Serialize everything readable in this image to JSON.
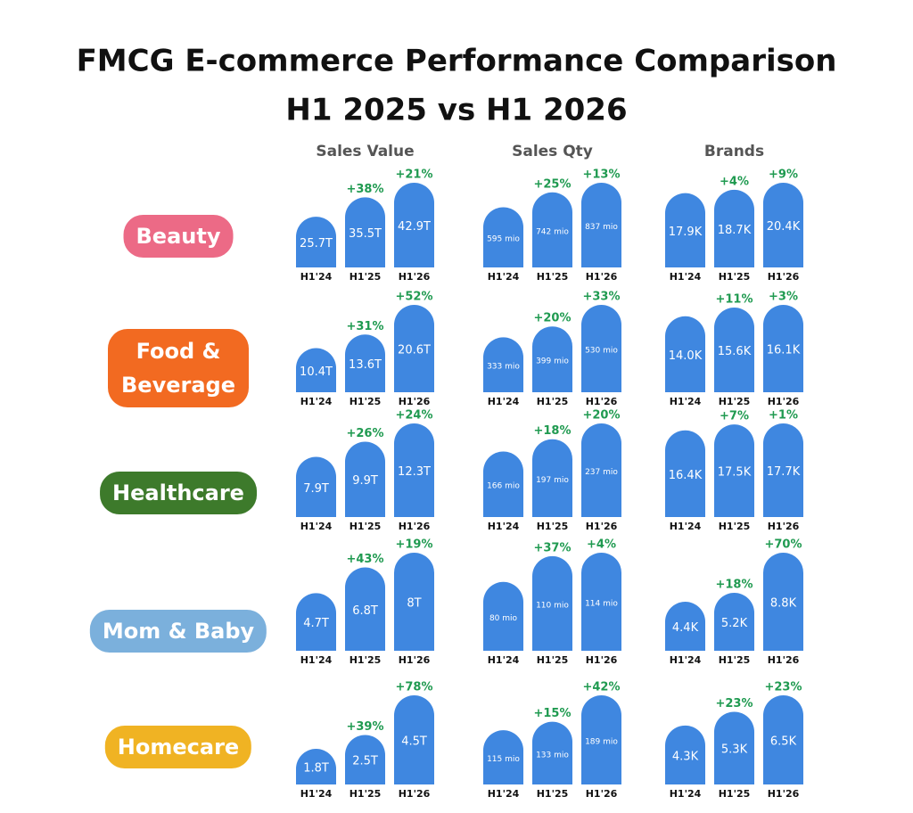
{
  "title": "FMCG E-commerce Performance Comparison",
  "subtitle": "H1 2025 vs H1 2026",
  "chart_data": {
    "type": "bar",
    "color": "#3f87e0",
    "growth_color": "#1f9a50",
    "metrics": [
      "Sales Value",
      "Sales Qty",
      "Brands"
    ],
    "periods": [
      "H1'24",
      "H1'25",
      "H1'26"
    ],
    "segments": [
      {
        "name": "Beauty",
        "color": "#ec6a86",
        "panels": [
          {
            "values": [
              25.7,
              35.5,
              42.9
            ],
            "value_labels": [
              "25.7T",
              "35.5T",
              "42.9T"
            ],
            "growth": [
              38,
              21
            ],
            "growth_labels": [
              "+38%",
              "+21%"
            ]
          },
          {
            "values": [
              595,
              742,
              837
            ],
            "value_labels": [
              "595 mio",
              "742 mio",
              "837 mio"
            ],
            "growth": [
              25,
              13
            ],
            "growth_labels": [
              "+25%",
              "+13%"
            ]
          },
          {
            "values": [
              17900,
              18700,
              20400
            ],
            "value_labels": [
              "17.9K",
              "18.7K",
              "20.4K"
            ],
            "growth": [
              4,
              9
            ],
            "growth_labels": [
              "+4%",
              "+9%"
            ]
          }
        ]
      },
      {
        "name": "Food & Beverage",
        "color": "#f26a21",
        "panels": [
          {
            "values": [
              10.4,
              13.6,
              20.6
            ],
            "value_labels": [
              "10.4T",
              "13.6T",
              "20.6T"
            ],
            "growth": [
              31,
              52
            ],
            "growth_labels": [
              "+31%",
              "+52%"
            ]
          },
          {
            "values": [
              333,
              399,
              530
            ],
            "value_labels": [
              "333 mio",
              "399 mio",
              "530 mio"
            ],
            "growth": [
              20,
              33
            ],
            "growth_labels": [
              "+20%",
              "+33%"
            ]
          },
          {
            "values": [
              14000,
              15600,
              16100
            ],
            "value_labels": [
              "14.0K",
              "15.6K",
              "16.1K"
            ],
            "growth": [
              11,
              3
            ],
            "growth_labels": [
              "+11%",
              "+3%"
            ]
          }
        ]
      },
      {
        "name": "Healthcare",
        "color": "#3d7a2b",
        "panels": [
          {
            "values": [
              7.9,
              9.9,
              12.3
            ],
            "value_labels": [
              "7.9T",
              "9.9T",
              "12.3T"
            ],
            "growth": [
              26,
              24
            ],
            "growth_labels": [
              "+26%",
              "+24%"
            ]
          },
          {
            "values": [
              166,
              197,
              237
            ],
            "value_labels": [
              "166 mio",
              "197 mio",
              "237 mio"
            ],
            "growth": [
              18,
              20
            ],
            "growth_labels": [
              "+18%",
              "+20%"
            ]
          },
          {
            "values": [
              16400,
              17500,
              17700
            ],
            "value_labels": [
              "16.4K",
              "17.5K",
              "17.7K"
            ],
            "growth": [
              7,
              1
            ],
            "growth_labels": [
              "+7%",
              "+1%"
            ]
          }
        ]
      },
      {
        "name": "Mom & Baby",
        "color": "#7bb0dc",
        "panels": [
          {
            "values": [
              4.7,
              6.8,
              8
            ],
            "value_labels": [
              "4.7T",
              "6.8T",
              "8T"
            ],
            "growth": [
              43,
              19
            ],
            "growth_labels": [
              "+43%",
              "+19%"
            ]
          },
          {
            "values": [
              80,
              110,
              114
            ],
            "value_labels": [
              "80 mio",
              "110 mio",
              "114 mio"
            ],
            "growth": [
              37,
              4
            ],
            "growth_labels": [
              "+37%",
              "+4%"
            ]
          },
          {
            "values": [
              4400,
              5200,
              8800
            ],
            "value_labels": [
              "4.4K",
              "5.2K",
              "8.8K"
            ],
            "growth": [
              18,
              70
            ],
            "growth_labels": [
              "+18%",
              "+70%"
            ]
          }
        ]
      },
      {
        "name": "Homecare",
        "color": "#f0b323",
        "panels": [
          {
            "values": [
              1.8,
              2.5,
              4.5
            ],
            "value_labels": [
              "1.8T",
              "2.5T",
              "4.5T"
            ],
            "growth": [
              39,
              78
            ],
            "growth_labels": [
              "+39%",
              "+78%"
            ]
          },
          {
            "values": [
              115,
              133,
              189
            ],
            "value_labels": [
              "115 mio",
              "133 mio",
              "189 mio"
            ],
            "growth": [
              15,
              42
            ],
            "growth_labels": [
              "+15%",
              "+42%"
            ]
          },
          {
            "values": [
              4300,
              5300,
              6500
            ],
            "value_labels": [
              "4.3K",
              "5.3K",
              "6.5K"
            ],
            "growth": [
              23,
              23
            ],
            "growth_labels": [
              "+23%",
              "+23%"
            ]
          }
        ]
      }
    ]
  }
}
